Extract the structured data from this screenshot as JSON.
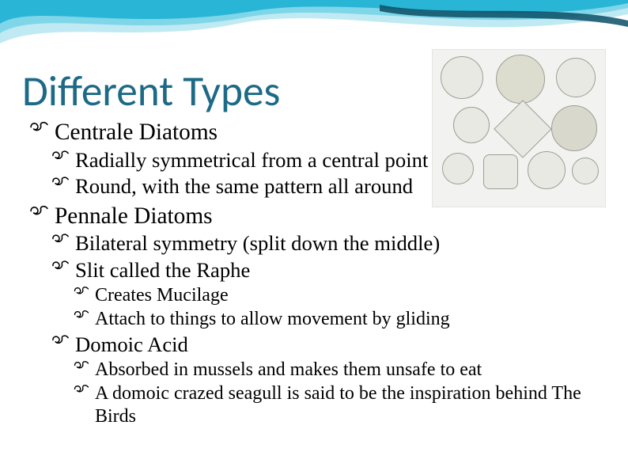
{
  "decor": {
    "wave_colors": [
      "#29b6d6",
      "#7fd6e8",
      "#bfeaf3",
      "#0b4f66"
    ],
    "background": "#ffffff"
  },
  "title": {
    "text": "Different Types",
    "color": "#1d6a86",
    "fontsize_pt": 40
  },
  "image": {
    "alt": "Assorted centrale diatoms micrograph collage",
    "placeholder_bg": "#f2f2f0",
    "shape_stroke": "#9e9e96"
  },
  "bullets": {
    "glyph": "་⁀",
    "glyph_display": "☙",
    "color": "#000000",
    "lvl1_fontsize_pt": 22,
    "lvl2_fontsize_pt": 20,
    "lvl3_fontsize_pt": 18,
    "items": [
      {
        "level": 1,
        "text": "Centrale Diatoms"
      },
      {
        "level": 2,
        "text": "Radially symmetrical from a central point"
      },
      {
        "level": 2,
        "text": "Round, with the same pattern all around"
      },
      {
        "level": 1,
        "text": "Pennale Diatoms"
      },
      {
        "level": 2,
        "text": "Bilateral symmetry (split down the middle)"
      },
      {
        "level": 2,
        "text": "Slit called the Raphe"
      },
      {
        "level": 3,
        "text": "Creates Mucilage"
      },
      {
        "level": 3,
        "text": "Attach to things to allow movement by gliding"
      },
      {
        "level": 2,
        "text": "Domoic Acid"
      },
      {
        "level": 3,
        "text": "Absorbed in mussels and makes them unsafe to eat"
      },
      {
        "level": 3,
        "text": "A domoic crazed seagull is said to be the inspiration behind The Birds"
      }
    ]
  }
}
